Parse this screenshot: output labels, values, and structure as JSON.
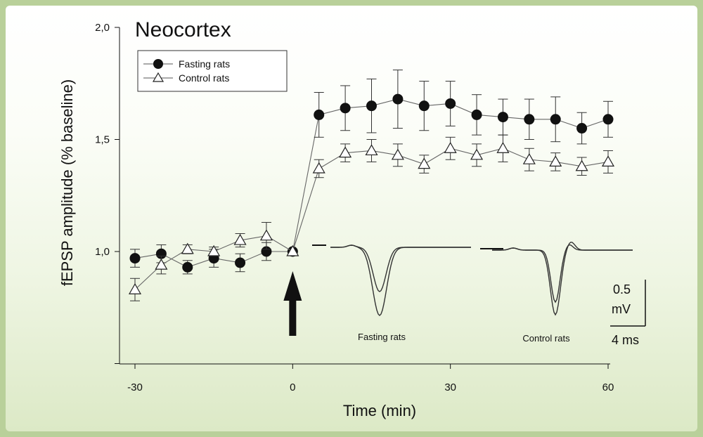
{
  "chart_data": {
    "type": "line",
    "title": "Neocortex",
    "xlabel": "Time (min)",
    "ylabel": "fEPSP amplitude (% baseline)",
    "xlim": [
      -35,
      65
    ],
    "ylim": [
      0.5,
      2.0
    ],
    "x_ticks": [
      -30,
      0,
      30,
      60
    ],
    "x_tick_labels": [
      "-30",
      "0",
      "30",
      "60"
    ],
    "y_ticks": [
      1.0,
      1.5,
      2.0
    ],
    "y_tick_labels": [
      "1,0",
      "1,5",
      "2,0"
    ],
    "legend_position": "top-left",
    "grid": false,
    "series": [
      {
        "name": "Fasting rats",
        "marker": "filled-circle",
        "x": [
          -30,
          -25,
          -20,
          -15,
          -10,
          -5,
          0,
          5,
          10,
          15,
          20,
          25,
          30,
          35,
          40,
          45,
          50,
          55,
          60
        ],
        "y": [
          0.97,
          0.99,
          0.93,
          0.97,
          0.95,
          1.0,
          1.0,
          1.61,
          1.64,
          1.65,
          1.68,
          1.65,
          1.66,
          1.61,
          1.6,
          1.59,
          1.59,
          1.55,
          1.59
        ],
        "err": [
          0.04,
          0.04,
          0.03,
          0.04,
          0.04,
          0.04,
          0.0,
          0.1,
          0.1,
          0.12,
          0.13,
          0.11,
          0.1,
          0.09,
          0.08,
          0.09,
          0.1,
          0.07,
          0.08
        ]
      },
      {
        "name": "Control rats",
        "marker": "open-triangle",
        "x": [
          -30,
          -25,
          -20,
          -15,
          -10,
          -5,
          0,
          5,
          10,
          15,
          20,
          25,
          30,
          35,
          40,
          45,
          50,
          55,
          60
        ],
        "y": [
          0.83,
          0.94,
          1.01,
          1.0,
          1.05,
          1.07,
          1.0,
          1.37,
          1.44,
          1.45,
          1.43,
          1.39,
          1.46,
          1.43,
          1.46,
          1.41,
          1.4,
          1.38,
          1.4
        ],
        "err": [
          0.05,
          0.04,
          0.02,
          0.02,
          0.03,
          0.06,
          0.0,
          0.04,
          0.04,
          0.05,
          0.05,
          0.04,
          0.05,
          0.05,
          0.06,
          0.05,
          0.04,
          0.04,
          0.05
        ]
      }
    ],
    "annotations": {
      "arrow_at_x": 0,
      "trace_labels": [
        "Fasting rats",
        "Control rats"
      ],
      "scale_bar": {
        "vertical_label_1": "0.5",
        "vertical_label_2": "mV",
        "horizontal_label": "4 ms"
      }
    }
  },
  "colors": {
    "frame": "#b9d09a",
    "ink": "#111111",
    "line": "#666666"
  }
}
